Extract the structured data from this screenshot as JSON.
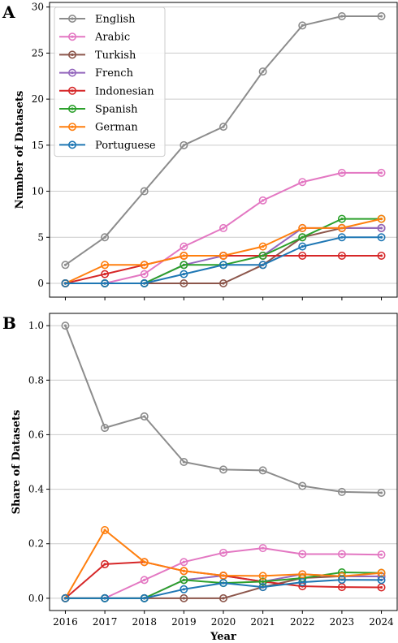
{
  "figure": {
    "x_label": "Year"
  },
  "chart_data": [
    {
      "panel": "A",
      "type": "line",
      "ylabel": "Number of Datasets",
      "xlabel": "",
      "x": [
        2016,
        2017,
        2018,
        2019,
        2020,
        2021,
        2022,
        2023,
        2024
      ],
      "ylim": [
        -1.5,
        30.5
      ],
      "yticks": [
        0,
        5,
        10,
        15,
        20,
        25,
        30
      ],
      "ytick_labels": [
        "0",
        "5",
        "10",
        "15",
        "20",
        "25",
        "30"
      ],
      "grid": "horizontal",
      "legend": "upper-left",
      "series": [
        {
          "name": "English",
          "color": "#8c8c8c",
          "values": [
            2,
            5,
            10,
            15,
            17,
            23,
            28,
            29,
            29
          ]
        },
        {
          "name": "Arabic",
          "color": "#e377c2",
          "values": [
            0,
            0,
            1,
            4,
            6,
            9,
            11,
            12,
            12
          ]
        },
        {
          "name": "Turkish",
          "color": "#8c564b",
          "values": [
            0,
            0,
            0,
            0,
            0,
            2,
            5,
            6,
            6
          ]
        },
        {
          "name": "French",
          "color": "#9467bd",
          "values": [
            0,
            0,
            0,
            2,
            3,
            3,
            6,
            6,
            6
          ]
        },
        {
          "name": "Indonesian",
          "color": "#d62728",
          "values": [
            0,
            1,
            2,
            3,
            3,
            3,
            3,
            3,
            3
          ]
        },
        {
          "name": "Spanish",
          "color": "#2ca02c",
          "values": [
            0,
            0,
            0,
            2,
            2,
            3,
            5,
            7,
            7
          ]
        },
        {
          "name": "German",
          "color": "#ff7f0e",
          "values": [
            0,
            2,
            2,
            3,
            3,
            4,
            6,
            6,
            7
          ]
        },
        {
          "name": "Portuguese",
          "color": "#1f77b4",
          "values": [
            0,
            0,
            0,
            1,
            2,
            2,
            4,
            5,
            5
          ]
        }
      ]
    },
    {
      "panel": "B",
      "type": "line",
      "ylabel": "Share of Datasets",
      "xlabel": "Year",
      "x": [
        2016,
        2017,
        2018,
        2019,
        2020,
        2021,
        2022,
        2023,
        2024
      ],
      "xtick_labels": [
        "2016",
        "2017",
        "2018",
        "2019",
        "2020",
        "2021",
        "2022",
        "2023",
        "2024"
      ],
      "ylim": [
        -0.045,
        1.045
      ],
      "yticks": [
        0,
        0.2,
        0.4,
        0.6,
        0.8,
        1.0
      ],
      "ytick_labels": [
        "0.0",
        "0.2",
        "0.4",
        "0.6",
        "0.8",
        "1.0"
      ],
      "grid": "horizontal",
      "series": [
        {
          "name": "English",
          "color": "#8c8c8c",
          "values": [
            1.0,
            0.625,
            0.667,
            0.5,
            0.472,
            0.469,
            0.412,
            0.39,
            0.387
          ]
        },
        {
          "name": "Arabic",
          "color": "#e377c2",
          "values": [
            0,
            0,
            0.067,
            0.133,
            0.167,
            0.184,
            0.162,
            0.162,
            0.16
          ]
        },
        {
          "name": "Turkish",
          "color": "#8c564b",
          "values": [
            0,
            0,
            0,
            0,
            0,
            0.041,
            0.074,
            0.081,
            0.08
          ]
        },
        {
          "name": "French",
          "color": "#9467bd",
          "values": [
            0,
            0,
            0,
            0.067,
            0.083,
            0.061,
            0.088,
            0.081,
            0.08
          ]
        },
        {
          "name": "Indonesian",
          "color": "#d62728",
          "values": [
            0,
            0.125,
            0.133,
            0.1,
            0.083,
            0.061,
            0.044,
            0.041,
            0.04
          ]
        },
        {
          "name": "Spanish",
          "color": "#2ca02c",
          "values": [
            0,
            0,
            0,
            0.067,
            0.056,
            0.061,
            0.074,
            0.095,
            0.093
          ]
        },
        {
          "name": "German",
          "color": "#ff7f0e",
          "values": [
            0,
            0.25,
            0.133,
            0.1,
            0.083,
            0.082,
            0.088,
            0.081,
            0.093
          ]
        },
        {
          "name": "Portuguese",
          "color": "#1f77b4",
          "values": [
            0,
            0,
            0,
            0.033,
            0.056,
            0.041,
            0.059,
            0.068,
            0.067
          ]
        }
      ]
    }
  ]
}
